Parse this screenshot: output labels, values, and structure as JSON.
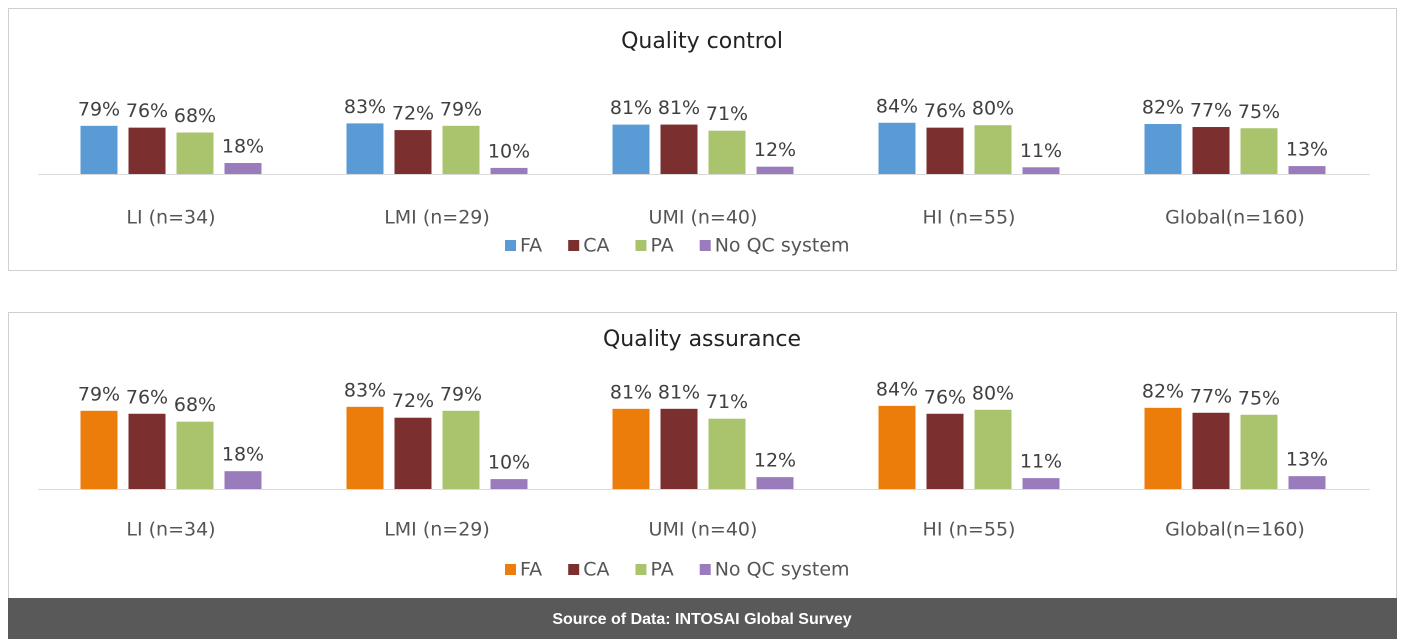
{
  "chart_data": [
    {
      "type": "bar",
      "title": "Quality control",
      "categories": [
        "LI (n=34)",
        "LMI (n=29)",
        "UMI (n=40)",
        "HI (n=55)",
        "Global(n=160)"
      ],
      "ylim": [
        0,
        100
      ],
      "series": [
        {
          "name": "FA",
          "color": "#5b9bd5",
          "values": [
            79,
            83,
            81,
            84,
            82
          ],
          "value_labels": [
            "79%",
            "83%",
            "81%",
            "84%",
            "82%"
          ]
        },
        {
          "name": "CA",
          "color": "#7b2f2f",
          "values": [
            76,
            72,
            81,
            76,
            77
          ],
          "value_labels": [
            "76%",
            "72%",
            "81%",
            "76%",
            "77%"
          ]
        },
        {
          "name": "PA",
          "color": "#a9c46c",
          "values": [
            68,
            79,
            71,
            80,
            75
          ],
          "value_labels": [
            "68%",
            "79%",
            "71%",
            "80%",
            "75%"
          ]
        },
        {
          "name": "No QC system",
          "color": "#9a7cbd",
          "values": [
            18,
            10,
            12,
            11,
            13
          ],
          "value_labels": [
            "18%",
            "10%",
            "12%",
            "11%",
            "13%"
          ]
        }
      ]
    },
    {
      "type": "bar",
      "title": "Quality assurance",
      "categories": [
        "LI (n=34)",
        "LMI (n=29)",
        "UMI (n=40)",
        "HI (n=55)",
        "Global(n=160)"
      ],
      "ylim": [
        0,
        100
      ],
      "series": [
        {
          "name": "FA",
          "color": "#ed7d0b",
          "values": [
            79,
            83,
            81,
            84,
            82
          ],
          "value_labels": [
            "79%",
            "83%",
            "81%",
            "84%",
            "82%"
          ]
        },
        {
          "name": "CA",
          "color": "#7b2f2f",
          "values": [
            76,
            72,
            81,
            76,
            77
          ],
          "value_labels": [
            "76%",
            "72%",
            "81%",
            "76%",
            "77%"
          ]
        },
        {
          "name": "PA",
          "color": "#a9c46c",
          "values": [
            68,
            79,
            71,
            80,
            75
          ],
          "value_labels": [
            "68%",
            "79%",
            "71%",
            "80%",
            "75%"
          ]
        },
        {
          "name": "No QC system",
          "color": "#9a7cbd",
          "values": [
            18,
            10,
            12,
            11,
            13
          ],
          "value_labels": [
            "18%",
            "10%",
            "12%",
            "11%",
            "13%"
          ]
        }
      ]
    }
  ],
  "footer": "Source of Data: INTOSAI Global Survey"
}
